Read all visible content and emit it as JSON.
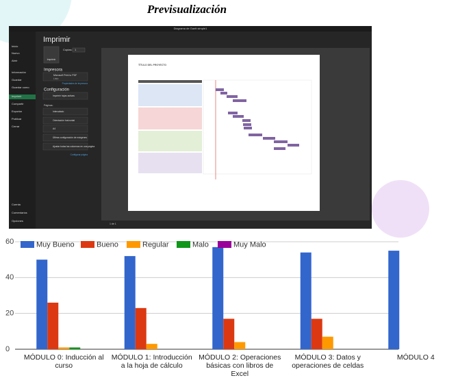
{
  "title": "Previsualización",
  "screenshot": {
    "window_title": "Diagrama de Gantt simple1",
    "nav": [
      "Inicio",
      "Nuevo",
      "Abrir",
      "Información",
      "Guardar",
      "Guardar como",
      "Imprimir",
      "Compartir",
      "Exportar",
      "Publicar",
      "Cerrar"
    ],
    "nav_bottom": [
      "Cuenta",
      "Comentarios",
      "Opciones"
    ],
    "heading": "Imprimir",
    "copies_label": "Copias:",
    "copies_value": "1",
    "print_button": "Imprimir",
    "printer_heading": "Impresora",
    "printer_name": "Microsoft Print to PDF",
    "printer_status": "Listo",
    "printer_properties": "Propiedades de impresora",
    "settings_heading": "Configuración",
    "settings": [
      "Imprimir hojas activas",
      "Intercalado",
      "Orientación horizontal",
      "A4",
      "Última configuración de márgenes",
      "Ajustar todas las columnas en una página"
    ],
    "pages_label": "Páginas:",
    "page_setup": "Configurar página",
    "preview_title": "TÍTULO DEL PROYECTO",
    "page_nav": "1 de 1"
  },
  "chart_data": {
    "type": "bar",
    "categories": [
      "MÓDULO 0: Inducción al curso",
      "MÓDULO 1: Introducción a la hoja de cálculo",
      "MÓDULO 2: Operaciones básicas con libros de Excel",
      "MÓDULO 3: Datos y operaciones de celdas",
      "MÓDULO 4"
    ],
    "series": [
      {
        "name": "Muy Bueno",
        "color": "#3366cc",
        "values": [
          50,
          52,
          57,
          54,
          55
        ]
      },
      {
        "name": "Bueno",
        "color": "#dc3912",
        "values": [
          26,
          23,
          17,
          17,
          null
        ]
      },
      {
        "name": "Regular",
        "color": "#ff9900",
        "values": [
          1,
          3,
          4,
          7,
          null
        ]
      },
      {
        "name": "Malo",
        "color": "#109618",
        "values": [
          1,
          0,
          0,
          0,
          null
        ]
      },
      {
        "name": "Muy Malo",
        "color": "#990099",
        "values": [
          0,
          0,
          0,
          0,
          null
        ]
      }
    ],
    "ylim": [
      0,
      60
    ],
    "yticks": [
      0,
      20,
      40,
      60
    ],
    "grid": true,
    "legend": "top"
  }
}
